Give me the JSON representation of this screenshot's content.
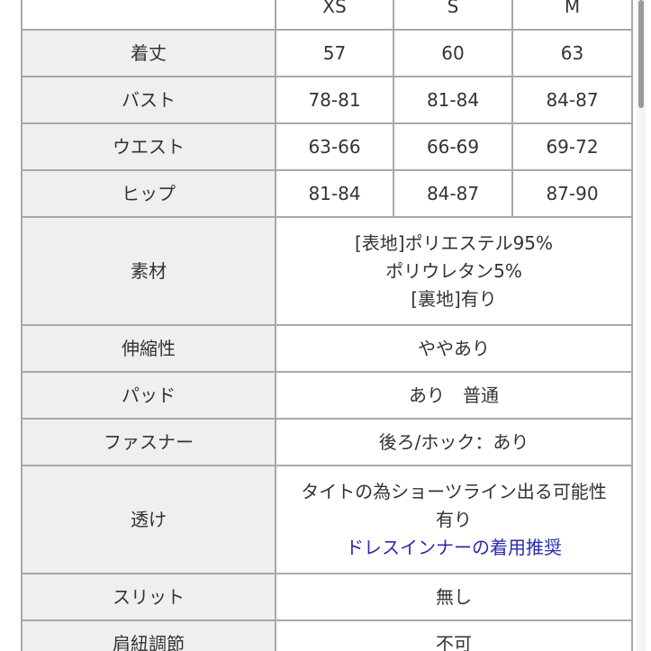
{
  "header": {
    "blank": "",
    "sizes": [
      "XS",
      "S",
      "M"
    ]
  },
  "size_rows": [
    {
      "label": "着丈",
      "values": [
        "57",
        "60",
        "63"
      ]
    },
    {
      "label": "バスト",
      "values": [
        "78-81",
        "81-84",
        "84-87"
      ]
    },
    {
      "label": "ウエスト",
      "values": [
        "63-66",
        "66-69",
        "69-72"
      ]
    },
    {
      "label": "ヒップ",
      "values": [
        "81-84",
        "84-87",
        "87-90"
      ]
    }
  ],
  "detail_rows": {
    "material": {
      "label": "素材",
      "lines": [
        "[表地]ポリエステル95%",
        "ポリウレタン5%",
        "[裏地]有り"
      ]
    },
    "stretch": {
      "label": "伸縮性",
      "value": "ややあり"
    },
    "pad": {
      "label": "パッド",
      "value": "あり　普通"
    },
    "fastener": {
      "label": "ファスナー",
      "value": "後ろ/ホック：あり"
    },
    "sheer": {
      "label": "透け",
      "lines": [
        "タイトの為ショーツライン出る可能性",
        "有り"
      ],
      "link": "ドレスインナーの着用推奨"
    },
    "slit": {
      "label": "スリット",
      "value": "無し"
    },
    "strap": {
      "label": "肩紐調節",
      "value": "不可"
    }
  },
  "colors": {
    "label_bg": "#efefef",
    "border": "#a8a8a8",
    "link": "#2a2ab0"
  }
}
